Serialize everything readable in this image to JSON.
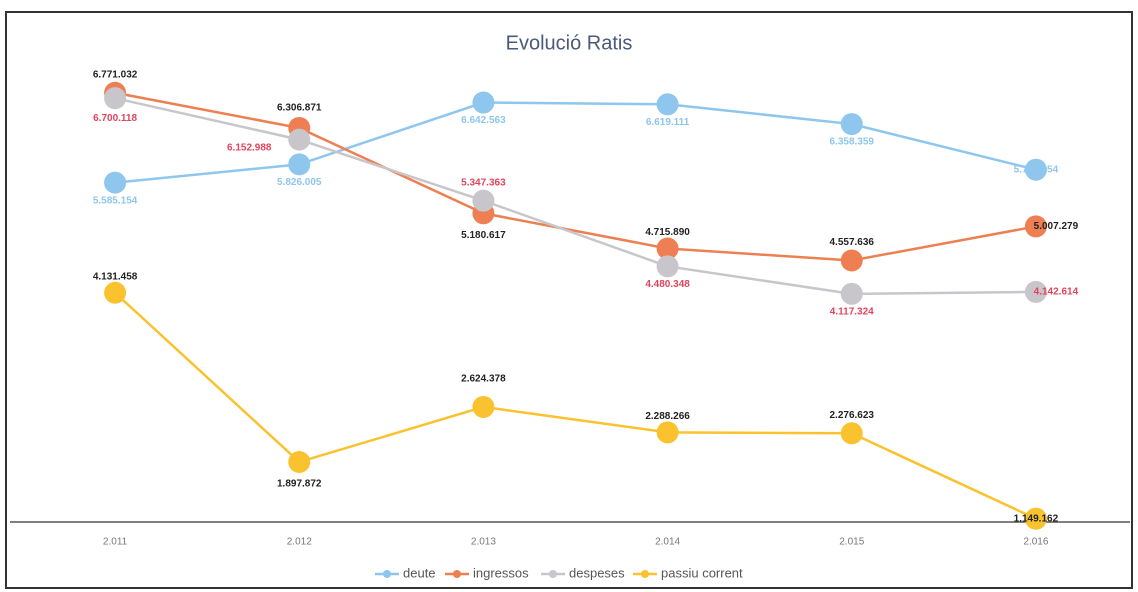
{
  "chart_data": {
    "type": "line",
    "title": "Evolució Ratis",
    "categories": [
      "2.011",
      "2.012",
      "2.013",
      "2.014",
      "2.015",
      "2.016"
    ],
    "ylim": [
      1000000,
      7600000
    ],
    "series": [
      {
        "name": "deute",
        "color": "#8ec6ee",
        "values": [
          5585154,
          5826005,
          6642563,
          6619111,
          6358359,
          5755954
        ],
        "value_labels": [
          "5.585.154",
          "5.826.005",
          "6.642.563",
          "6.619.111",
          "6.358.359",
          "5.755.954"
        ]
      },
      {
        "name": "ingressos",
        "color": "#ee7f52",
        "values": [
          6771032,
          6306871,
          5180617,
          4715890,
          4557636,
          5007279
        ],
        "value_labels": [
          "6.771.032",
          "6.306.871",
          "5.180.617",
          "4.715.890",
          "4.557.636",
          "5.007.279"
        ]
      },
      {
        "name": "despeses",
        "color": "#c9c6cb",
        "values": [
          6700118,
          6152988,
          5347363,
          4480348,
          4117324,
          4142614
        ],
        "value_labels": [
          "6.700.118",
          "6.152.988",
          "5.347.363",
          "4.480.348",
          "4.117.324",
          "4.142.614"
        ]
      },
      {
        "name": "passiu corrent",
        "color": "#f9c22e",
        "values": [
          4131458,
          1897872,
          2624378,
          2288266,
          2276623,
          1149162
        ],
        "value_labels": [
          "4.131.458",
          "1.897.872",
          "2.624.378",
          "2.288.266",
          "2.276.623",
          "1.149.162"
        ]
      }
    ]
  }
}
